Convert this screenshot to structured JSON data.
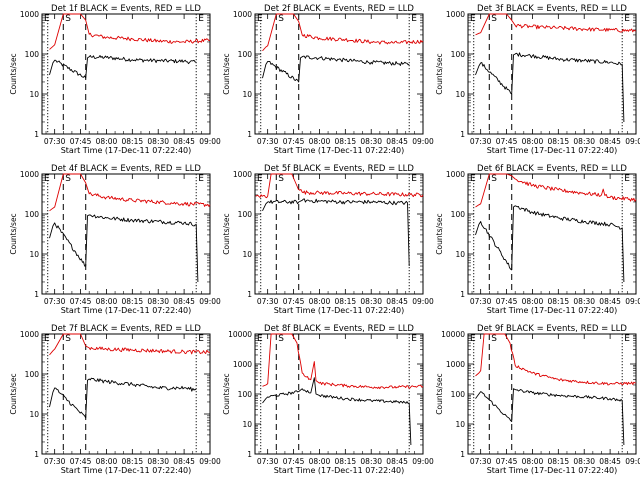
{
  "figure": {
    "xlabel": "Start Time (17-Dec-11 07:22:40)",
    "ylabel": "Counts/sec",
    "x_ticks": [
      "07:30",
      "07:45",
      "08:00",
      "08:15",
      "08:30",
      "08:45",
      "09:00"
    ],
    "y_ticks": [
      "1",
      "10",
      "100",
      "1000",
      "10000"
    ],
    "markers": {
      "start": "S",
      "end": "E"
    },
    "colors": {
      "events": "#000000",
      "lld": "#dd0000",
      "axes": "#000000"
    }
  },
  "chart_data": [
    {
      "type": "line",
      "title": "Det 1f BLACK = Events, RED = LLD",
      "xlabel": "Start Time (17-Dec-11 07:22:40)",
      "ylabel": "Counts/sec",
      "xlim": [
        "07:22:40",
        "09:00"
      ],
      "ylim": [
        1,
        1000
      ],
      "y_scale": "log",
      "grid": false,
      "markers": {
        "S": "07:35",
        "E": "08:52",
        "dashed": [
          "07:35",
          "07:48"
        ],
        "dotted": [
          "07:26",
          "08:52"
        ]
      },
      "series": [
        {
          "name": "BLACK = Events",
          "color": "#000000",
          "x": [
            "07:27",
            "07:29",
            "07:30",
            "07:48",
            "07:49",
            "07:50",
            "08:00",
            "08:15",
            "08:30",
            "08:45",
            "08:52"
          ],
          "values": [
            30,
            60,
            70,
            25,
            80,
            85,
            82,
            72,
            68,
            66,
            62
          ]
        },
        {
          "name": "RED = LLD",
          "color": "#dd0000",
          "x": [
            "07:27",
            "07:29",
            "07:30",
            "07:35",
            "07:45",
            "07:48",
            "07:50",
            "08:00",
            "08:15",
            "08:30",
            "08:45",
            "09:00"
          ],
          "values": [
            130,
            155,
            170,
            1000,
            1000,
            700,
            310,
            260,
            240,
            210,
            200,
            220
          ]
        }
      ]
    },
    {
      "type": "line",
      "title": "Det 2f BLACK = Events, RED = LLD",
      "xlabel": "Start Time (17-Dec-11 07:22:40)",
      "ylabel": "Counts/sec",
      "xlim": [
        "07:22:40",
        "09:00"
      ],
      "ylim": [
        1,
        1000
      ],
      "y_scale": "log",
      "grid": false,
      "markers": {
        "S": "07:35",
        "E": "08:52",
        "dashed": [
          "07:35",
          "07:48"
        ],
        "dotted": [
          "07:26",
          "08:52"
        ]
      },
      "series": [
        {
          "name": "BLACK = Events",
          "color": "#000000",
          "x": [
            "07:27",
            "07:29",
            "07:30",
            "07:48",
            "07:49",
            "07:50",
            "08:00",
            "08:15",
            "08:30",
            "08:45",
            "08:52"
          ],
          "values": [
            25,
            55,
            65,
            20,
            80,
            85,
            80,
            70,
            62,
            58,
            55
          ]
        },
        {
          "name": "RED = LLD",
          "color": "#dd0000",
          "x": [
            "07:27",
            "07:29",
            "07:30",
            "07:35",
            "07:45",
            "07:48",
            "07:50",
            "08:00",
            "08:15",
            "08:30",
            "08:45",
            "09:00"
          ],
          "values": [
            120,
            150,
            160,
            1000,
            1000,
            650,
            300,
            250,
            230,
            200,
            190,
            210
          ]
        }
      ]
    },
    {
      "type": "line",
      "title": "Det 3f BLACK = Events, RED = LLD",
      "xlabel": "Start Time (17-Dec-11 07:22:40)",
      "ylabel": "Counts/sec",
      "xlim": [
        "07:22:40",
        "09:00"
      ],
      "ylim": [
        1,
        1000
      ],
      "y_scale": "log",
      "grid": false,
      "markers": {
        "S": "07:35",
        "E": "08:52",
        "dashed": [
          "07:35",
          "07:48"
        ],
        "dotted": [
          "07:26",
          "08:52"
        ]
      },
      "series": [
        {
          "name": "BLACK = Events",
          "color": "#000000",
          "x": [
            "07:27",
            "07:29",
            "07:30",
            "07:48",
            "07:49",
            "07:50",
            "08:00",
            "08:15",
            "08:30",
            "08:45",
            "08:52",
            "08:53"
          ],
          "values": [
            30,
            50,
            60,
            10,
            95,
            100,
            90,
            75,
            68,
            62,
            55,
            2
          ]
        },
        {
          "name": "RED = LLD",
          "color": "#dd0000",
          "x": [
            "07:27",
            "07:29",
            "07:30",
            "07:35",
            "07:45",
            "07:48",
            "07:50",
            "08:00",
            "08:15",
            "08:30",
            "08:45",
            "09:00"
          ],
          "values": [
            300,
            330,
            340,
            1000,
            1000,
            700,
            520,
            480,
            450,
            420,
            400,
            380
          ]
        }
      ]
    },
    {
      "type": "line",
      "title": "Det 4f BLACK = Events, RED = LLD",
      "xlabel": "Start Time (17-Dec-11 07:22:40)",
      "ylabel": "Counts/sec",
      "xlim": [
        "07:22:40",
        "09:00"
      ],
      "ylim": [
        1,
        1000
      ],
      "y_scale": "log",
      "grid": false,
      "markers": {
        "S": "07:35",
        "E": "08:52",
        "dashed": [
          "07:35",
          "07:48"
        ],
        "dotted": [
          "07:26",
          "08:52"
        ]
      },
      "series": [
        {
          "name": "BLACK = Events",
          "color": "#000000",
          "x": [
            "07:27",
            "07:29",
            "07:30",
            "07:48",
            "07:49",
            "07:50",
            "08:00",
            "08:15",
            "08:30",
            "08:45",
            "08:52",
            "08:53"
          ],
          "values": [
            25,
            50,
            60,
            5,
            90,
            95,
            80,
            70,
            65,
            60,
            55,
            2
          ]
        },
        {
          "name": "RED = LLD",
          "color": "#dd0000",
          "x": [
            "07:27",
            "07:29",
            "07:30",
            "07:35",
            "07:45",
            "07:48",
            "07:50",
            "08:00",
            "08:15",
            "08:30",
            "08:45",
            "09:00"
          ],
          "values": [
            120,
            140,
            150,
            1000,
            1000,
            600,
            320,
            260,
            220,
            200,
            180,
            170
          ]
        }
      ]
    },
    {
      "type": "line",
      "title": "Det 5f BLACK = Events, RED = LLD",
      "xlabel": "Start Time (17-Dec-11 07:22:40)",
      "ylabel": "Counts/sec",
      "xlim": [
        "07:22:40",
        "09:00"
      ],
      "ylim": [
        1,
        1000
      ],
      "y_scale": "log",
      "grid": false,
      "markers": {
        "S": "07:35",
        "E": "08:52",
        "dashed": [
          "07:35",
          "07:48"
        ],
        "dotted": [
          "07:26",
          "08:52"
        ]
      },
      "series": [
        {
          "name": "BLACK = Events",
          "color": "#000000",
          "x": [
            "07:27",
            "07:29",
            "07:30",
            "07:48",
            "07:50",
            "08:00",
            "08:15",
            "08:30",
            "08:45",
            "08:51",
            "08:52"
          ],
          "values": [
            120,
            180,
            200,
            200,
            220,
            210,
            200,
            200,
            190,
            190,
            5
          ]
        },
        {
          "name": "RED = LLD",
          "color": "#dd0000",
          "x": [
            "07:23",
            "07:30",
            "07:32",
            "07:36",
            "07:44",
            "07:47",
            "07:50",
            "08:00",
            "08:15",
            "08:30",
            "08:45",
            "09:00"
          ],
          "values": [
            280,
            280,
            1000,
            1000,
            1000,
            500,
            350,
            340,
            330,
            320,
            310,
            300
          ]
        }
      ]
    },
    {
      "type": "line",
      "title": "Det 6f BLACK = Events, RED = LLD",
      "xlabel": "Start Time (17-Dec-11 07:22:40)",
      "ylabel": "Counts/sec",
      "xlim": [
        "07:22:40",
        "09:00"
      ],
      "ylim": [
        1,
        1000
      ],
      "y_scale": "log",
      "grid": false,
      "markers": {
        "S": "07:35",
        "E": "08:52",
        "dashed": [
          "07:35",
          "07:48"
        ],
        "dotted": [
          "07:26",
          "08:52"
        ]
      },
      "series": [
        {
          "name": "BLACK = Events",
          "color": "#000000",
          "x": [
            "07:27",
            "07:29",
            "07:30",
            "07:48",
            "07:49",
            "07:50",
            "08:00",
            "08:15",
            "08:30",
            "08:45",
            "08:52",
            "08:53"
          ],
          "values": [
            30,
            55,
            65,
            4,
            150,
            160,
            110,
            80,
            65,
            55,
            45,
            2
          ]
        },
        {
          "name": "RED = LLD",
          "color": "#dd0000",
          "x": [
            "07:27",
            "07:29",
            "07:30",
            "07:35",
            "07:45",
            "07:48",
            "07:50",
            "08:00",
            "08:15",
            "08:30",
            "08:40",
            "08:41",
            "08:42",
            "08:45",
            "09:00"
          ],
          "values": [
            150,
            170,
            180,
            1000,
            1000,
            900,
            750,
            520,
            400,
            330,
            300,
            420,
            290,
            260,
            230
          ]
        }
      ]
    },
    {
      "type": "line",
      "title": "Det 7f BLACK = Events, RED = LLD",
      "xlabel": "Start Time (17-Dec-11 07:22:40)",
      "ylabel": "Counts/sec",
      "xlim": [
        "07:22:40",
        "09:00"
      ],
      "ylim": [
        1,
        1000
      ],
      "y_scale": "log",
      "grid": false,
      "markers": {
        "S": "07:35",
        "E": "08:52",
        "dashed": [
          "07:35",
          "07:48"
        ],
        "dotted": [
          "07:26",
          "08:52"
        ]
      },
      "series": [
        {
          "name": "BLACK = Events",
          "color": "#000000",
          "x": [
            "07:27",
            "07:29",
            "07:30",
            "07:48",
            "07:49",
            "07:50",
            "08:00",
            "08:15",
            "08:30",
            "08:45",
            "08:52"
          ],
          "values": [
            15,
            35,
            45,
            8,
            70,
            75,
            65,
            55,
            45,
            45,
            40
          ]
        },
        {
          "name": "RED = LLD",
          "color": "#dd0000",
          "x": [
            "07:27",
            "07:29",
            "07:30",
            "07:35",
            "07:45",
            "07:48",
            "07:50",
            "08:00",
            "08:15",
            "08:30",
            "08:45",
            "09:00"
          ],
          "values": [
            300,
            380,
            420,
            1000,
            1000,
            500,
            450,
            420,
            400,
            380,
            360,
            350
          ]
        }
      ]
    },
    {
      "type": "line",
      "title": "Det 8f BLACK = Events, RED = LLD",
      "xlabel": "Start Time (17-Dec-11 07:22:40)",
      "ylabel": "Counts/sec",
      "xlim": [
        "07:22:40",
        "09:00"
      ],
      "ylim": [
        1,
        10000
      ],
      "y_scale": "log",
      "grid": false,
      "markers": {
        "S": "07:35",
        "E": "08:52",
        "dashed": [
          "07:35",
          "07:48"
        ],
        "dotted": [
          "07:26",
          "08:52"
        ]
      },
      "series": [
        {
          "name": "BLACK = Events",
          "color": "#000000",
          "x": [
            "07:27",
            "07:29",
            "07:30",
            "07:48",
            "07:50",
            "07:55",
            "07:57",
            "07:58",
            "08:00",
            "08:15",
            "08:30",
            "08:45",
            "08:52",
            "08:53"
          ],
          "values": [
            50,
            70,
            80,
            120,
            150,
            110,
            350,
            100,
            90,
            70,
            60,
            55,
            50,
            2
          ]
        },
        {
          "name": "RED = LLD",
          "color": "#dd0000",
          "x": [
            "07:27",
            "07:29",
            "07:30",
            "07:32",
            "07:36",
            "07:44",
            "07:47",
            "07:50",
            "07:55",
            "07:57",
            "07:58",
            "08:00",
            "08:15",
            "08:30",
            "08:45",
            "09:00"
          ],
          "values": [
            180,
            200,
            220,
            10000,
            10000,
            10000,
            5000,
            500,
            300,
            1200,
            280,
            230,
            190,
            170,
            170,
            180
          ]
        }
      ]
    },
    {
      "type": "line",
      "title": "Det 9f BLACK = Events, RED = LLD",
      "xlabel": "Start Time (17-Dec-11 07:22:40)",
      "ylabel": "Counts/sec",
      "xlim": [
        "07:22:40",
        "09:00"
      ],
      "ylim": [
        1,
        10000
      ],
      "y_scale": "log",
      "grid": false,
      "markers": {
        "S": "07:35",
        "E": "08:52",
        "dashed": [
          "07:35",
          "07:48"
        ],
        "dotted": [
          "07:26",
          "08:52"
        ]
      },
      "series": [
        {
          "name": "BLACK = Events",
          "color": "#000000",
          "x": [
            "07:27",
            "07:29",
            "07:30",
            "07:48",
            "07:49",
            "07:50",
            "08:00",
            "08:15",
            "08:30",
            "08:45",
            "08:52",
            "08:53"
          ],
          "values": [
            70,
            100,
            120,
            12,
            150,
            140,
            110,
            90,
            80,
            70,
            60,
            2
          ]
        },
        {
          "name": "RED = LLD",
          "color": "#dd0000",
          "x": [
            "07:27",
            "07:29",
            "07:30",
            "07:32",
            "07:36",
            "07:44",
            "07:47",
            "07:50",
            "08:00",
            "08:15",
            "08:30",
            "08:45",
            "09:00"
          ],
          "values": [
            400,
            500,
            600,
            10000,
            10000,
            10000,
            5000,
            900,
            500,
            300,
            250,
            220,
            230
          ]
        }
      ]
    }
  ]
}
